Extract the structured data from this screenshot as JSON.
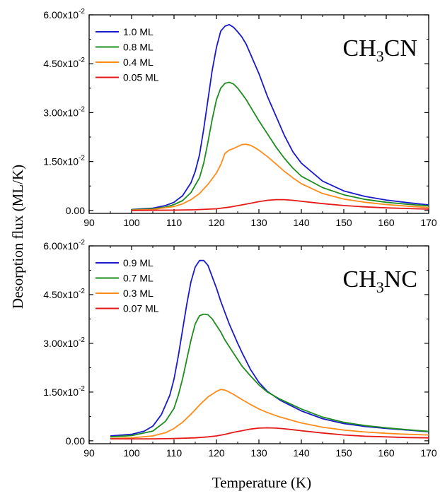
{
  "chart_data": {
    "type": "line",
    "ylabel": "Desorption flux (ML/K)",
    "xlabel": "Temperature (K)",
    "panels": [
      {
        "label_main": "CH",
        "label_sub": "3",
        "label_rest": "CN",
        "xlim": [
          90,
          170
        ],
        "ylim": [
          -0.0009,
          0.06
        ],
        "xticks": [
          "90",
          "100",
          "110",
          "120",
          "130",
          "140",
          "150",
          "160",
          "170"
        ],
        "yticks": [
          {
            "mant": "0.00",
            "exp": ""
          },
          {
            "mant": "1.50x10",
            "exp": "-2"
          },
          {
            "mant": "3.00x10",
            "exp": "-2"
          },
          {
            "mant": "4.50x10",
            "exp": "-2"
          },
          {
            "mant": "6.00x10",
            "exp": "-2"
          }
        ],
        "legend_placement": "top-left",
        "series": [
          {
            "name": "1.0 ML",
            "color": "#1a1acc",
            "x": [
              100,
              105,
              108,
              110,
              112,
              114,
              115,
              116,
              117,
              118,
              119,
              120,
              121,
              122,
              123,
              124,
              125,
              126,
              127,
              128,
              130,
              132,
              134,
              136,
              138,
              140,
              145,
              150,
              155,
              160,
              165,
              170
            ],
            "y": [
              0.0003,
              0.0007,
              0.0015,
              0.0025,
              0.0045,
              0.0085,
              0.012,
              0.017,
              0.025,
              0.034,
              0.043,
              0.05,
              0.055,
              0.0565,
              0.057,
              0.0562,
              0.0548,
              0.0532,
              0.051,
              0.048,
              0.042,
              0.035,
              0.029,
              0.023,
              0.018,
              0.0145,
              0.009,
              0.006,
              0.0043,
              0.0032,
              0.0024,
              0.0017
            ]
          },
          {
            "name": "0.8 ML",
            "color": "#1e8c1e",
            "x": [
              100,
              105,
              108,
              110,
              112,
              114,
              116,
              117,
              118,
              119,
              120,
              121,
              122,
              123,
              124,
              125,
              126,
              127,
              128,
              130,
              132,
              134,
              136,
              138,
              140,
              145,
              150,
              155,
              160,
              165,
              170
            ],
            "y": [
              0.0002,
              0.0005,
              0.001,
              0.0018,
              0.003,
              0.0055,
              0.01,
              0.0145,
              0.021,
              0.028,
              0.034,
              0.0375,
              0.039,
              0.0393,
              0.0388,
              0.0375,
              0.0358,
              0.034,
              0.0318,
              0.0275,
              0.0235,
              0.0195,
              0.016,
              0.013,
              0.0105,
              0.007,
              0.0048,
              0.0034,
              0.0025,
              0.0019,
              0.0014
            ]
          },
          {
            "name": "0.4 ML",
            "color": "#ff8c1a",
            "x": [
              100,
              105,
              110,
              112,
              114,
              116,
              118,
              120,
              121,
              122,
              123,
              124,
              125,
              126,
              127,
              128,
              129,
              130,
              132,
              134,
              136,
              138,
              140,
              145,
              150,
              155,
              160,
              165,
              170
            ],
            "y": [
              0.0001,
              0.0003,
              0.0012,
              0.002,
              0.0033,
              0.0052,
              0.008,
              0.0115,
              0.014,
              0.0175,
              0.0185,
              0.019,
              0.0196,
              0.0202,
              0.0203,
              0.02,
              0.0193,
              0.0185,
              0.0165,
              0.0143,
              0.012,
              0.01,
              0.0082,
              0.0052,
              0.0035,
              0.0025,
              0.0018,
              0.0013,
              0.0009
            ]
          },
          {
            "name": "0.05 ML",
            "color": "#e61919",
            "x": [
              100,
              110,
              115,
              120,
              123,
              126,
              128,
              130,
              132,
              134,
              136,
              138,
              140,
              145,
              150,
              155,
              160,
              165,
              170
            ],
            "y": [
              0.0,
              0.0001,
              0.0002,
              0.0005,
              0.001,
              0.0017,
              0.0022,
              0.0027,
              0.0031,
              0.0033,
              0.0033,
              0.0031,
              0.0028,
              0.0021,
              0.0015,
              0.0011,
              0.0008,
              0.0006,
              0.0004
            ]
          }
        ]
      },
      {
        "label_main": "CH",
        "label_sub": "3",
        "label_rest": "NC",
        "xlim": [
          90,
          170
        ],
        "ylim": [
          -0.0009,
          0.06
        ],
        "xticks": [
          "90",
          "100",
          "110",
          "120",
          "130",
          "140",
          "150",
          "160",
          "170"
        ],
        "yticks": [
          {
            "mant": "0.00",
            "exp": ""
          },
          {
            "mant": "1.50x10",
            "exp": "-2"
          },
          {
            "mant": "3.00x10",
            "exp": "-2"
          },
          {
            "mant": "4.50x10",
            "exp": "-2"
          },
          {
            "mant": "6.00x10",
            "exp": "-2"
          }
        ],
        "legend_placement": "top-left",
        "series": [
          {
            "name": "0.9 ML",
            "color": "#1a1acc",
            "x": [
              95,
              100,
              103,
              105,
              107,
              109,
              110,
              111,
              112,
              113,
              114,
              115,
              116,
              117,
              118,
              119,
              120,
              121,
              122,
              123,
              124,
              125,
              126,
              128,
              130,
              132,
              135,
              140,
              145,
              150,
              155,
              160,
              165,
              170
            ],
            "y": [
              0.0015,
              0.002,
              0.003,
              0.0045,
              0.008,
              0.014,
              0.019,
              0.026,
              0.034,
              0.042,
              0.049,
              0.0535,
              0.0555,
              0.0555,
              0.054,
              0.0505,
              0.047,
              0.043,
              0.0395,
              0.036,
              0.033,
              0.03,
              0.0272,
              0.022,
              0.018,
              0.0152,
              0.0125,
              0.0092,
              0.0068,
              0.0053,
              0.0044,
              0.0038,
              0.0033,
              0.0028
            ]
          },
          {
            "name": "0.7 ML",
            "color": "#1e8c1e",
            "x": [
              95,
              100,
              105,
              108,
              110,
              111,
              112,
              113,
              114,
              115,
              116,
              117,
              118,
              119,
              120,
              121,
              122,
              123,
              124,
              125,
              126,
              128,
              130,
              132,
              135,
              140,
              145,
              150,
              155,
              160,
              165,
              170
            ],
            "y": [
              0.0012,
              0.0016,
              0.003,
              0.006,
              0.01,
              0.014,
              0.019,
              0.025,
              0.031,
              0.036,
              0.0385,
              0.039,
              0.0388,
              0.0375,
              0.0355,
              0.0335,
              0.031,
              0.029,
              0.027,
              0.025,
              0.023,
              0.02,
              0.0172,
              0.015,
              0.0128,
              0.0098,
              0.0073,
              0.0057,
              0.0047,
              0.004,
              0.0034,
              0.0029
            ]
          },
          {
            "name": "0.3 ML",
            "color": "#ff8c1a",
            "x": [
              95,
              100,
              105,
              108,
              110,
              112,
              114,
              116,
              118,
              120,
              121,
              122,
              123,
              124,
              125,
              126,
              128,
              130,
              132,
              135,
              140,
              145,
              150,
              155,
              160,
              165,
              170
            ],
            "y": [
              0.0007,
              0.0009,
              0.0015,
              0.0025,
              0.0038,
              0.0057,
              0.0082,
              0.011,
              0.0135,
              0.0152,
              0.0158,
              0.0156,
              0.015,
              0.0143,
              0.0135,
              0.0127,
              0.0112,
              0.0098,
              0.0087,
              0.0073,
              0.0055,
              0.0042,
              0.0033,
              0.0027,
              0.0023,
              0.002,
              0.0018
            ]
          },
          {
            "name": "0.07 ML",
            "color": "#e61919",
            "x": [
              95,
              100,
              105,
              110,
              115,
              118,
              120,
              122,
              124,
              126,
              128,
              130,
              132,
              134,
              136,
              138,
              140,
              145,
              150,
              155,
              160,
              165,
              170
            ],
            "y": [
              0.0006,
              0.0006,
              0.0006,
              0.0007,
              0.0009,
              0.0012,
              0.0015,
              0.002,
              0.0026,
              0.0031,
              0.0036,
              0.0039,
              0.004,
              0.0039,
              0.0037,
              0.0034,
              0.0031,
              0.0024,
              0.0018,
              0.0014,
              0.0012,
              0.001,
              0.0009
            ]
          }
        ]
      }
    ]
  }
}
